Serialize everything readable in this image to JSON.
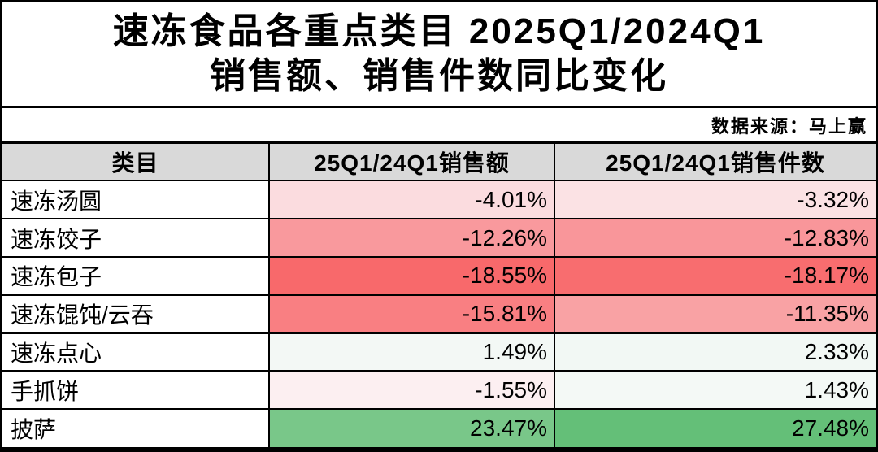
{
  "title": {
    "line1": "速冻食品各重点类目 2025Q1/2024Q1",
    "line2": "销售额、销售件数同比变化"
  },
  "source": "数据来源：马上赢",
  "colors": {
    "header_bg": "#D9D9D9",
    "border": "#000000",
    "negative_strong": "#F8696B",
    "positive_strong": "#63BE7B"
  },
  "table": {
    "headers": {
      "category": "类目",
      "sales": "25Q1/24Q1销售额",
      "units": "25Q1/24Q1销售件数"
    },
    "rows": [
      {
        "category": "速冻汤圆",
        "sales": "-4.01%",
        "units": "-3.32%",
        "sales_bg": "#FBDCDF",
        "units_bg": "#FBE2E4"
      },
      {
        "category": "速冻饺子",
        "sales": "-12.26%",
        "units": "-12.83%",
        "sales_bg": "#F9999D",
        "units_bg": "#F9969A"
      },
      {
        "category": "速冻包子",
        "sales": "-18.55%",
        "units": "-18.17%",
        "sales_bg": "#F8696B",
        "units_bg": "#F86D6F"
      },
      {
        "category": "速冻馄饨/云吞",
        "sales": "-15.81%",
        "units": "-11.35%",
        "sales_bg": "#F97F82",
        "units_bg": "#F9A2A4"
      },
      {
        "category": "速冻点心",
        "sales": "1.49%",
        "units": "2.33%",
        "sales_bg": "#F3F8F5",
        "units_bg": "#F2F8F4"
      },
      {
        "category": "手抓饼",
        "sales": "-1.55%",
        "units": "1.43%",
        "sales_bg": "#FCEFF1",
        "units_bg": "#F4F9F6"
      },
      {
        "category": "披萨",
        "sales": "23.47%",
        "units": "27.48%",
        "sales_bg": "#79C789",
        "units_bg": "#64BF78"
      }
    ]
  },
  "chart_data": {
    "type": "table",
    "title": "速冻食品各重点类目 2025Q1/2024Q1 销售额、销售件数同比变化",
    "source": "数据来源：马上赢",
    "columns": [
      "类目",
      "25Q1/24Q1销售额",
      "25Q1/24Q1销售件数"
    ],
    "rows": [
      [
        "速冻汤圆",
        -4.01,
        -3.32
      ],
      [
        "速冻饺子",
        -12.26,
        -12.83
      ],
      [
        "速冻包子",
        -18.55,
        -18.17
      ],
      [
        "速冻馄饨/云吞",
        -15.81,
        -11.35
      ],
      [
        "速冻点心",
        1.49,
        2.33
      ],
      [
        "手抓饼",
        -1.55,
        1.43
      ],
      [
        "披萨",
        23.47,
        27.48
      ]
    ],
    "value_unit": "%",
    "layout_hints": {
      "conditional_formatting": "red-white-green 3-color scale, red = most negative (-18.55%), green = most positive (+27.48%)",
      "category_align": "left",
      "value_align": "right",
      "grid": true
    }
  }
}
